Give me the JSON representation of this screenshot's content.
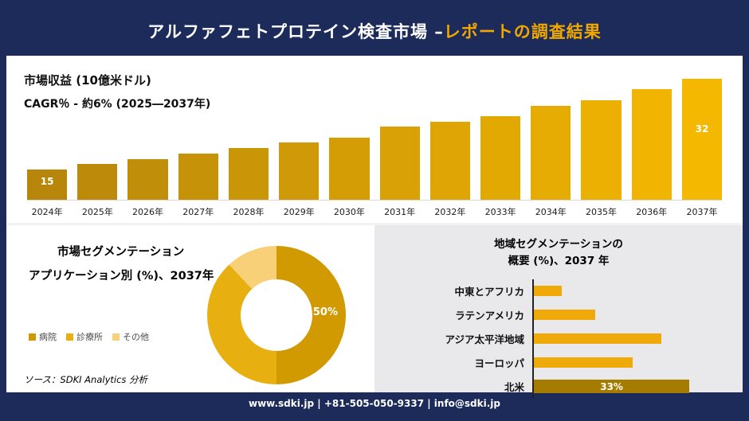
{
  "header": {
    "title_main": "アルファフェトプロテイン検査市場 –",
    "title_accent": "レポートの調査結果"
  },
  "segmentation": {
    "title_line1": "市場セグメンテーション",
    "title_line2": "アプリケーション別 (%)、2037年",
    "donut_label": "50%",
    "source": "ソース：SDKI Analytics 分析"
  },
  "region": {
    "title_line1": "地域セグメンテーションの",
    "title_line2": "概要 (%)、2037 年"
  },
  "footer": {
    "text": "www.sdki.jp | +81-505-050-9337 | info@sdki.jp"
  },
  "colors": {
    "navy": "#1c2b5a",
    "accent_gold": "#f0a800"
  },
  "chart_data": [
    {
      "type": "bar",
      "title": "市場収益 (10億米ドル)",
      "subtitle": "CAGR％ - 約6% (2025―2037年)",
      "categories": [
        "2024年",
        "2025年",
        "2026年",
        "2027年",
        "2028年",
        "2029年",
        "2030年",
        "2031年",
        "2032年",
        "2033年",
        "2034年",
        "2035年",
        "2036年",
        "2037年"
      ],
      "values": [
        15,
        16,
        17,
        18,
        19,
        20,
        21,
        23,
        24,
        25,
        27,
        28,
        30,
        32
      ],
      "ylim": [
        0,
        35
      ],
      "grid": false,
      "legend_position": "none",
      "bar_color_start": "#b8860b",
      "bar_color_end": "#f5b800",
      "labeled_points": [
        {
          "category": "2024年",
          "value": "15"
        },
        {
          "category": "2037年",
          "value": "32"
        }
      ]
    },
    {
      "type": "pie",
      "title": "市場セグメンテーション アプリケーション別 (%)、2037年",
      "labels": [
        "病院",
        "診療所",
        "その他"
      ],
      "values": [
        50,
        38,
        12
      ],
      "colors": [
        "#d09a00",
        "#e8af10",
        "#f8d078"
      ],
      "donut": true,
      "shown_label": "50%",
      "legend_position": "left"
    },
    {
      "type": "bar",
      "orientation": "horizontal",
      "title": "地域セグメンテーションの概要 (%)、2037 年",
      "categories": [
        "中東とアフリカ",
        "ラテンアメリカ",
        "アジア太平洋地域",
        "ヨーロッパ",
        "北米"
      ],
      "values": [
        6,
        13,
        27,
        21,
        33
      ],
      "xlim": [
        0,
        35
      ],
      "bar_color": "#efa909",
      "highlight": {
        "category": "北米",
        "color": "#a57c00",
        "label": "33%"
      }
    }
  ]
}
